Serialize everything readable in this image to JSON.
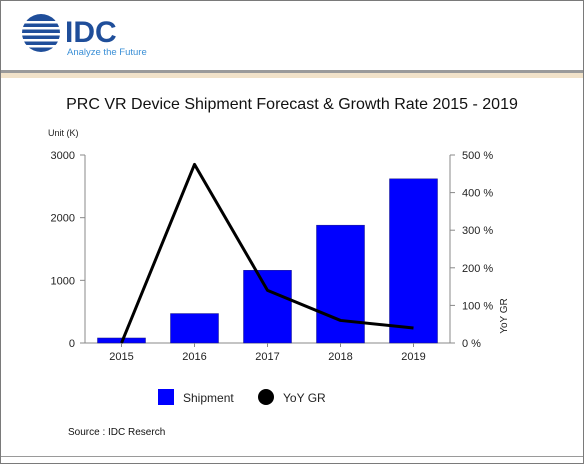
{
  "brand": {
    "name": "IDC",
    "tagline": "Analyze the Future",
    "primary_color": "#1f4e9a",
    "accent_color": "#3a8fd6"
  },
  "chart_data": {
    "type": "bar",
    "title": "PRC VR Device Shipment Forecast & Growth Rate 2015 - 2019",
    "ylabel_left": "Unit (K)",
    "ylabel_right": "YoY GR",
    "categories": [
      "2015",
      "2016",
      "2017",
      "2018",
      "2019"
    ],
    "left_axis": {
      "ylim": [
        0,
        3000
      ],
      "ticks": [
        "0",
        "1000",
        "2000",
        "3000"
      ],
      "tick_values": [
        0,
        1000,
        2000,
        3000
      ]
    },
    "right_axis": {
      "ylim": [
        0,
        500
      ],
      "ticks": [
        "0 %",
        "100 %",
        "200 %",
        "300 %",
        "400 %",
        "500 %"
      ],
      "tick_values": [
        0,
        100,
        200,
        300,
        400,
        500
      ]
    },
    "series": [
      {
        "name": "Shipment",
        "type": "bar",
        "axis": "left",
        "color": "#0000ff",
        "values": [
          80,
          470,
          1160,
          1880,
          2620
        ]
      },
      {
        "name": "YoY GR",
        "type": "line",
        "axis": "right",
        "color": "#000000",
        "values": [
          0,
          475,
          140,
          60,
          40
        ]
      }
    ],
    "grid": false,
    "legend_position": "bottom"
  },
  "source_text": "Source : IDC Reserch"
}
